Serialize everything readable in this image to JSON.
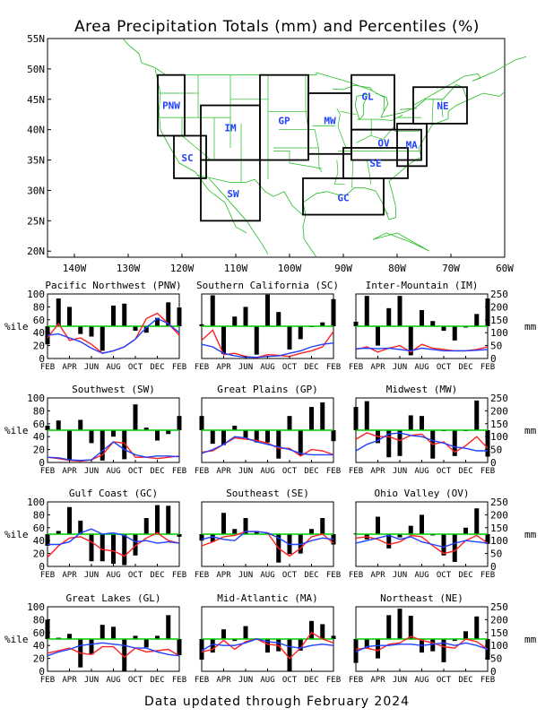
{
  "title": "Area Precipitation Totals (mm) and Percentiles (%)",
  "footer": "Data updated through February 2024",
  "colors": {
    "bars": "#000000",
    "percentile_line": "#00cc00",
    "observed_line": "#ff2020",
    "normal_line": "#2040ff",
    "region_label": "#2040ff",
    "map_lines": "#22bb22"
  },
  "map": {
    "lat_labels": [
      "55N",
      "50N",
      "45N",
      "40N",
      "35N",
      "30N",
      "25N",
      "20N"
    ],
    "lon_labels": [
      "140W",
      "130W",
      "120W",
      "110W",
      "100W",
      "90W",
      "80W",
      "70W",
      "60W"
    ],
    "regions": [
      {
        "code": "PNW"
      },
      {
        "code": "SC"
      },
      {
        "code": "IM"
      },
      {
        "code": "SW"
      },
      {
        "code": "GP"
      },
      {
        "code": "MW"
      },
      {
        "code": "GL"
      },
      {
        "code": "OV"
      },
      {
        "code": "SE"
      },
      {
        "code": "GC"
      },
      {
        "code": "MA"
      },
      {
        "code": "NE"
      }
    ]
  },
  "axes": {
    "left_label": "%ile",
    "right_label": "mm",
    "left_ticks": [
      "100",
      "80",
      "60",
      "40",
      "20",
      "0"
    ],
    "right_ticks": [
      "250",
      "200",
      "150",
      "100",
      "50",
      "0"
    ],
    "x_ticks": [
      "FEB",
      "APR",
      "JUN",
      "AUG",
      "OCT",
      "DEC",
      "FEB"
    ]
  },
  "chart_data": [
    {
      "type": "bar",
      "title": "Pacific Northwest (PNW)",
      "ylim": [
        0,
        100
      ],
      "y2lim": [
        0,
        250
      ],
      "x": [
        "2023-02",
        "2023-03",
        "2023-04",
        "2023-05",
        "2023-06",
        "2023-07",
        "2023-08",
        "2023-09",
        "2023-10",
        "2023-11",
        "2023-12",
        "2024-01",
        "2024-02"
      ],
      "percentiles": [
        22,
        93,
        80,
        38,
        34,
        12,
        82,
        85,
        43,
        40,
        63,
        87,
        79
      ],
      "observed_mm": [
        80,
        135,
        70,
        80,
        55,
        20,
        30,
        45,
        75,
        155,
        175,
        135,
        90
      ],
      "normal_mm": [
        90,
        95,
        80,
        65,
        40,
        20,
        30,
        45,
        75,
        120,
        155,
        135,
        100
      ]
    },
    {
      "type": "bar",
      "title": "Southern California (SC)",
      "ylim": [
        0,
        100
      ],
      "y2lim": [
        0,
        250
      ],
      "x": [
        "2023-02",
        "2023-03",
        "2023-04",
        "2023-05",
        "2023-06",
        "2023-07",
        "2023-08",
        "2023-09",
        "2023-10",
        "2023-11",
        "2023-12",
        "2024-01",
        "2024-02"
      ],
      "percentiles": [
        53,
        98,
        7,
        65,
        80,
        6,
        99,
        72,
        14,
        30,
        50,
        56,
        92
      ],
      "observed_mm": [
        70,
        110,
        15,
        20,
        8,
        3,
        15,
        12,
        8,
        20,
        30,
        45,
        105
      ],
      "normal_mm": [
        55,
        45,
        20,
        10,
        5,
        5,
        8,
        10,
        20,
        30,
        45,
        55,
        60
      ]
    },
    {
      "type": "bar",
      "title": "Inter-Mountain (IM)",
      "ylim": [
        0,
        100
      ],
      "y2lim": [
        0,
        250
      ],
      "x": [
        "2023-02",
        "2023-03",
        "2023-04",
        "2023-05",
        "2023-06",
        "2023-07",
        "2023-08",
        "2023-09",
        "2023-10",
        "2023-11",
        "2023-12",
        "2024-01",
        "2024-02"
      ],
      "percentiles": [
        57,
        97,
        20,
        78,
        97,
        5,
        75,
        58,
        43,
        28,
        48,
        69,
        93
      ],
      "observed_mm": [
        35,
        45,
        25,
        40,
        50,
        25,
        55,
        40,
        35,
        30,
        30,
        35,
        45
      ],
      "normal_mm": [
        38,
        40,
        38,
        40,
        35,
        30,
        40,
        35,
        30,
        30,
        30,
        32,
        35
      ]
    },
    {
      "type": "bar",
      "title": "Southwest (SW)",
      "ylim": [
        0,
        100
      ],
      "y2lim": [
        0,
        250
      ],
      "x": [
        "2023-02",
        "2023-03",
        "2023-04",
        "2023-05",
        "2023-06",
        "2023-07",
        "2023-08",
        "2023-09",
        "2023-10",
        "2023-11",
        "2023-12",
        "2024-01",
        "2024-02"
      ],
      "percentiles": [
        57,
        65,
        3,
        66,
        30,
        3,
        40,
        5,
        90,
        54,
        34,
        44,
        72
      ],
      "observed_mm": [
        20,
        15,
        8,
        5,
        10,
        30,
        80,
        75,
        20,
        20,
        15,
        20,
        25
      ],
      "normal_mm": [
        20,
        18,
        10,
        8,
        10,
        45,
        80,
        50,
        30,
        20,
        25,
        25,
        22
      ]
    },
    {
      "type": "bar",
      "title": "Great Plains (GP)",
      "ylim": [
        0,
        100
      ],
      "y2lim": [
        0,
        250
      ],
      "x": [
        "2023-02",
        "2023-03",
        "2023-04",
        "2023-05",
        "2023-06",
        "2023-07",
        "2023-08",
        "2023-09",
        "2023-10",
        "2023-11",
        "2023-12",
        "2024-01",
        "2024-02"
      ],
      "percentiles": [
        72,
        29,
        27,
        57,
        38,
        31,
        31,
        6,
        72,
        11,
        86,
        93,
        33
      ],
      "observed_mm": [
        40,
        45,
        70,
        95,
        90,
        85,
        75,
        55,
        55,
        25,
        50,
        45,
        30
      ],
      "normal_mm": [
        35,
        50,
        70,
        100,
        95,
        80,
        70,
        60,
        50,
        35,
        30,
        30,
        30
      ]
    },
    {
      "type": "bar",
      "title": "Midwest (MW)",
      "ylim": [
        0,
        100
      ],
      "y2lim": [
        0,
        250
      ],
      "x": [
        "2023-02",
        "2023-03",
        "2023-04",
        "2023-05",
        "2023-06",
        "2023-07",
        "2023-08",
        "2023-09",
        "2023-10",
        "2023-11",
        "2023-12",
        "2024-01",
        "2024-02"
      ],
      "percentiles": [
        86,
        95,
        30,
        8,
        10,
        73,
        72,
        6,
        50,
        10,
        50,
        96,
        9
      ],
      "observed_mm": [
        90,
        115,
        100,
        100,
        85,
        105,
        110,
        70,
        80,
        40,
        65,
        100,
        55
      ],
      "normal_mm": [
        45,
        70,
        85,
        110,
        115,
        105,
        100,
        85,
        75,
        60,
        55,
        45,
        45
      ]
    },
    {
      "type": "bar",
      "title": "Gulf Coast (GC)",
      "ylim": [
        0,
        100
      ],
      "y2lim": [
        0,
        250
      ],
      "x": [
        "2023-02",
        "2023-03",
        "2023-04",
        "2023-05",
        "2023-06",
        "2023-07",
        "2023-08",
        "2023-09",
        "2023-10",
        "2023-11",
        "2023-12",
        "2024-01",
        "2024-02"
      ],
      "percentiles": [
        32,
        55,
        92,
        71,
        8,
        8,
        4,
        2,
        17,
        75,
        95,
        94,
        46
      ],
      "observed_mm": [
        35,
        80,
        110,
        115,
        95,
        65,
        60,
        40,
        80,
        110,
        130,
        100,
        90
      ],
      "normal_mm": [
        85,
        85,
        95,
        130,
        145,
        125,
        130,
        120,
        95,
        100,
        90,
        95,
        90
      ]
    },
    {
      "type": "bar",
      "title": "Southeast (SE)",
      "ylim": [
        0,
        100
      ],
      "y2lim": [
        0,
        250
      ],
      "x": [
        "2023-02",
        "2023-03",
        "2023-04",
        "2023-05",
        "2023-06",
        "2023-07",
        "2023-08",
        "2023-09",
        "2023-10",
        "2023-11",
        "2023-12",
        "2024-01",
        "2024-02"
      ],
      "percentiles": [
        40,
        38,
        83,
        58,
        75,
        55,
        52,
        6,
        19,
        20,
        58,
        75,
        34
      ],
      "observed_mm": [
        80,
        95,
        115,
        120,
        135,
        135,
        130,
        70,
        40,
        70,
        115,
        125,
        90
      ],
      "normal_mm": [
        105,
        115,
        105,
        100,
        135,
        135,
        130,
        110,
        85,
        85,
        100,
        110,
        105
      ]
    },
    {
      "type": "bar",
      "title": "Ohio Valley (OV)",
      "ylim": [
        0,
        100
      ],
      "y2lim": [
        0,
        250
      ],
      "x": [
        "2023-02",
        "2023-03",
        "2023-04",
        "2023-05",
        "2023-06",
        "2023-07",
        "2023-08",
        "2023-09",
        "2023-10",
        "2023-11",
        "2023-12",
        "2024-01",
        "2024-02"
      ],
      "percentiles": [
        51,
        42,
        77,
        28,
        45,
        63,
        80,
        48,
        17,
        7,
        60,
        90,
        35
      ],
      "observed_mm": [
        110,
        115,
        105,
        85,
        95,
        120,
        115,
        80,
        50,
        60,
        100,
        120,
        90
      ],
      "normal_mm": [
        90,
        100,
        110,
        120,
        105,
        115,
        95,
        85,
        75,
        90,
        100,
        95,
        90
      ]
    },
    {
      "type": "bar",
      "title": "Great Lakes (GL)",
      "ylim": [
        0,
        100
      ],
      "y2lim": [
        0,
        250
      ],
      "x": [
        "2023-02",
        "2023-03",
        "2023-04",
        "2023-05",
        "2023-06",
        "2023-07",
        "2023-08",
        "2023-09",
        "2023-10",
        "2023-11",
        "2023-12",
        "2024-01",
        "2024-02"
      ],
      "percentiles": [
        80,
        52,
        58,
        6,
        26,
        72,
        69,
        0,
        55,
        37,
        55,
        87,
        25
      ],
      "observed_mm": [
        70,
        80,
        90,
        70,
        65,
        95,
        95,
        55,
        90,
        75,
        80,
        85,
        60
      ],
      "normal_mm": [
        60,
        75,
        85,
        100,
        105,
        110,
        105,
        100,
        90,
        90,
        75,
        65,
        60
      ]
    },
    {
      "type": "bar",
      "title": "Mid-Atlantic (MA)",
      "ylim": [
        0,
        100
      ],
      "y2lim": [
        0,
        250
      ],
      "x": [
        "2023-02",
        "2023-03",
        "2023-04",
        "2023-05",
        "2023-06",
        "2023-07",
        "2023-08",
        "2023-09",
        "2023-10",
        "2023-11",
        "2023-12",
        "2024-01",
        "2024-02"
      ],
      "percentiles": [
        18,
        29,
        65,
        47,
        70,
        51,
        29,
        31,
        0,
        32,
        78,
        73,
        55
      ],
      "observed_mm": [
        75,
        85,
        120,
        85,
        115,
        125,
        105,
        100,
        50,
        90,
        150,
        125,
        110
      ],
      "normal_mm": [
        80,
        105,
        100,
        100,
        110,
        125,
        115,
        110,
        95,
        90,
        100,
        105,
        100
      ]
    },
    {
      "type": "bar",
      "title": "Northeast (NE)",
      "ylim": [
        0,
        100
      ],
      "y2lim": [
        0,
        250
      ],
      "x": [
        "2023-02",
        "2023-03",
        "2023-04",
        "2023-05",
        "2023-06",
        "2023-07",
        "2023-08",
        "2023-09",
        "2023-10",
        "2023-11",
        "2023-12",
        "2024-01",
        "2024-02"
      ],
      "percentiles": [
        13,
        35,
        20,
        87,
        97,
        86,
        29,
        31,
        14,
        47,
        62,
        85,
        18
      ],
      "observed_mm": [
        85,
        90,
        80,
        105,
        110,
        135,
        120,
        110,
        95,
        90,
        125,
        115,
        85
      ],
      "normal_mm": [
        75,
        95,
        100,
        100,
        105,
        105,
        100,
        105,
        110,
        100,
        110,
        100,
        85
      ]
    }
  ]
}
